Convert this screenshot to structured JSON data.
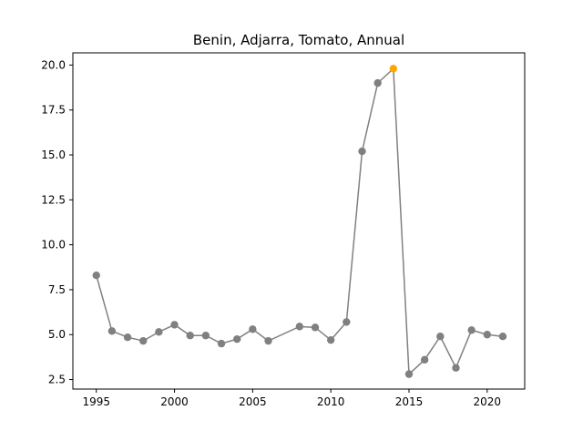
{
  "chart_data": {
    "type": "line",
    "title": "Benin, Adjarra, Tomato, Annual",
    "xlabel": "",
    "ylabel": "",
    "xlim": [
      1993.5,
      2022.4
    ],
    "ylim": [
      1.97,
      20.68
    ],
    "xticks": [
      1995,
      2000,
      2005,
      2010,
      2015,
      2020
    ],
    "xtick_labels": [
      "1995",
      "2000",
      "2005",
      "2010",
      "2015",
      "2020"
    ],
    "yticks": [
      2.5,
      5.0,
      7.5,
      10.0,
      12.5,
      15.0,
      17.5,
      20.0
    ],
    "ytick_labels": [
      "2.5",
      "5.0",
      "7.5",
      "10.0",
      "12.5",
      "15.0",
      "17.5",
      "20.0"
    ],
    "grid": false,
    "line_color": "#808080",
    "highlight_color": "#FFA500",
    "series": [
      {
        "x": [
          1995,
          1996,
          1997,
          1998,
          1999,
          2000,
          2001,
          2002,
          2003,
          2004,
          2005,
          2006,
          2008,
          2009,
          2010,
          2011,
          2012,
          2013,
          2014,
          2015,
          2016,
          2017,
          2018,
          2019,
          2020,
          2021
        ],
        "values": [
          8.3,
          5.2,
          4.85,
          4.65,
          5.15,
          5.55,
          4.95,
          4.95,
          4.5,
          4.75,
          5.3,
          4.65,
          5.45,
          5.4,
          4.7,
          5.7,
          15.2,
          19.0,
          19.8,
          2.8,
          3.6,
          4.9,
          3.15,
          5.25,
          5.0,
          4.9
        ],
        "highlight_index": 18
      }
    ]
  }
}
